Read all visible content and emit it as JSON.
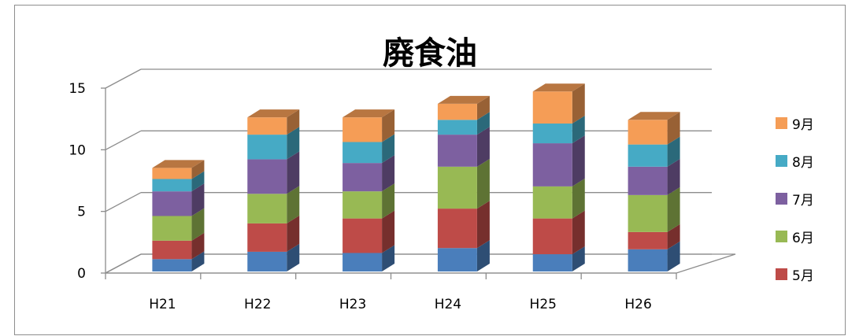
{
  "chart_data": {
    "type": "bar",
    "stacked": true,
    "three_d": true,
    "title": "廃食油",
    "categories": [
      "H21",
      "H22",
      "H23",
      "H24",
      "H25",
      "H26"
    ],
    "ylim": [
      0,
      15
    ],
    "yticks": [
      0,
      5,
      10,
      15
    ],
    "grid": true,
    "legend_position": "right",
    "series": [
      {
        "name": "",
        "color": "#4a7ebb",
        "values": [
          1.0,
          1.6,
          1.5,
          1.9,
          1.4,
          1.8
        ]
      },
      {
        "name": "5月",
        "color": "#be4b48",
        "values": [
          1.5,
          2.3,
          2.8,
          3.2,
          2.9,
          1.4
        ]
      },
      {
        "name": "6月",
        "color": "#98b954",
        "values": [
          2.0,
          2.4,
          2.2,
          3.4,
          2.6,
          3.0
        ]
      },
      {
        "name": "7月",
        "color": "#7d60a0",
        "values": [
          2.0,
          2.8,
          2.3,
          2.6,
          3.5,
          2.3
        ]
      },
      {
        "name": "8月",
        "color": "#46aac5",
        "values": [
          1.0,
          2.0,
          1.7,
          1.2,
          1.6,
          1.8
        ]
      },
      {
        "name": "9月",
        "color": "#f59d56",
        "values": [
          0.9,
          1.4,
          2.0,
          1.3,
          2.6,
          2.0
        ]
      }
    ]
  }
}
